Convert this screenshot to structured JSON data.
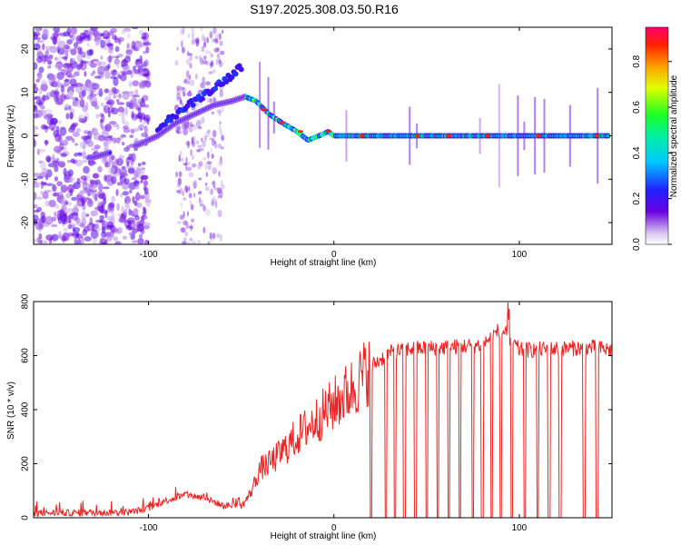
{
  "title": "S197.2025.308.03.50.R16",
  "colors": {
    "snr_line": "#ee2222",
    "axis": "#000000"
  },
  "chart_data": [
    {
      "type": "heatmap",
      "name": "spectrogram",
      "xlabel": "Height of straight line (km)",
      "ylabel": "Frequency (Hz)",
      "xlim": [
        -162,
        150
      ],
      "ylim": [
        -25,
        25
      ],
      "xticks": [
        -100,
        0,
        100
      ],
      "xtick_labels": [
        "-100",
        "0",
        "100"
      ],
      "yticks": [
        -20,
        -10,
        0,
        10,
        20
      ],
      "ytick_labels": [
        "-20",
        "-10",
        "0",
        "10",
        "20"
      ],
      "colorbar": {
        "label": "Normalized spectral amplitude",
        "range": [
          0,
          0.95
        ],
        "ticks": [
          0,
          0.2,
          0.4,
          0.6,
          0.8
        ],
        "tick_labels": [
          "0.0",
          "0.2",
          "0.4",
          "0.6",
          "0.8"
        ]
      },
      "ridge": {
        "description": "dominant frequency track vs height",
        "x": [
          -130,
          -105,
          -95,
          -85,
          -75,
          -65,
          -55,
          -48,
          -42,
          -35,
          -28,
          -20,
          -14,
          -8,
          -3,
          0,
          10,
          30,
          60,
          90,
          120,
          148
        ],
        "freq": [
          -5,
          -2,
          0,
          3,
          5,
          7,
          8,
          9,
          8,
          5,
          3,
          1,
          -1,
          0,
          1,
          0,
          0,
          0,
          0,
          0,
          0,
          0
        ],
        "upper_branch_x": [
          -95,
          -85,
          -75,
          -65,
          -55,
          -50
        ],
        "upper_branch_freq": [
          2,
          5,
          8,
          11,
          14,
          16
        ]
      }
    },
    {
      "type": "line",
      "name": "snr",
      "xlabel": "Height of straight line (km)",
      "ylabel": "SNR (10 * v/v)",
      "xlim": [
        -162,
        150
      ],
      "ylim": [
        0,
        800
      ],
      "xticks": [
        -100,
        0,
        100
      ],
      "xtick_labels": [
        "-100",
        "0",
        "100"
      ],
      "yticks": [
        0,
        200,
        400,
        600,
        800
      ],
      "ytick_labels": [
        "0",
        "200",
        "400",
        "600",
        "800"
      ],
      "envelope": {
        "x": [
          -162,
          -110,
          -100,
          -90,
          -80,
          -70,
          -60,
          -50,
          -45,
          -40,
          -35,
          -30,
          -20,
          -10,
          0,
          10,
          20,
          30,
          40,
          60,
          80,
          90,
          100,
          120,
          140,
          150
        ],
        "snr": [
          12,
          15,
          30,
          60,
          80,
          70,
          40,
          40,
          90,
          180,
          200,
          230,
          300,
          360,
          420,
          480,
          560,
          610,
          625,
          630,
          640,
          700,
          620,
          625,
          630,
          620
        ]
      },
      "dropout_heights": [
        20,
        28,
        33,
        38,
        44,
        50,
        56,
        62,
        68,
        75,
        80,
        85,
        90,
        96,
        103,
        110,
        116,
        122,
        135,
        142
      ]
    }
  ]
}
